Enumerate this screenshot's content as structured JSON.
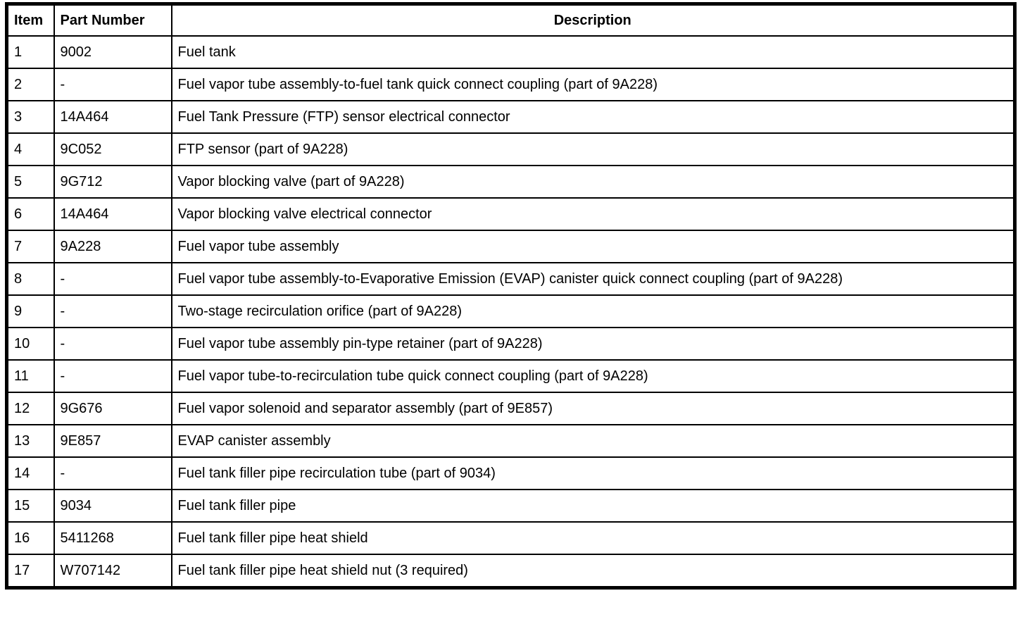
{
  "colors": {
    "border": "#000000",
    "background": "#ffffff",
    "text": "#000000"
  },
  "table": {
    "headers": [
      "Item",
      "Part Number",
      "Description"
    ],
    "rows": [
      {
        "item": "1",
        "part_number": "9002",
        "description": "Fuel tank"
      },
      {
        "item": "2",
        "part_number": "-",
        "description": "Fuel vapor tube assembly-to-fuel tank quick connect coupling (part of 9A228)"
      },
      {
        "item": "3",
        "part_number": "14A464",
        "description": "Fuel Tank Pressure (FTP) sensor electrical connector"
      },
      {
        "item": "4",
        "part_number": "9C052",
        "description": "FTP sensor (part of 9A228)"
      },
      {
        "item": "5",
        "part_number": "9G712",
        "description": "Vapor blocking valve (part of 9A228)"
      },
      {
        "item": "6",
        "part_number": "14A464",
        "description": "Vapor blocking valve electrical connector"
      },
      {
        "item": "7",
        "part_number": "9A228",
        "description": "Fuel vapor tube assembly"
      },
      {
        "item": "8",
        "part_number": "-",
        "description": "Fuel vapor tube assembly-to-Evaporative Emission (EVAP) canister quick connect coupling (part of 9A228)"
      },
      {
        "item": "9",
        "part_number": "-",
        "description": "Two-stage recirculation orifice (part of 9A228)"
      },
      {
        "item": "10",
        "part_number": "-",
        "description": "Fuel vapor tube assembly pin-type retainer (part of 9A228)"
      },
      {
        "item": "11",
        "part_number": "-",
        "description": "Fuel vapor tube-to-recirculation tube quick connect coupling (part of 9A228)"
      },
      {
        "item": "12",
        "part_number": "9G676",
        "description": "Fuel vapor solenoid and separator assembly (part of 9E857)"
      },
      {
        "item": "13",
        "part_number": "9E857",
        "description": "EVAP canister assembly"
      },
      {
        "item": "14",
        "part_number": "-",
        "description": "Fuel tank filler pipe recirculation tube (part of 9034)"
      },
      {
        "item": "15",
        "part_number": "9034",
        "description": "Fuel tank filler pipe"
      },
      {
        "item": "16",
        "part_number": "5411268",
        "description": "Fuel tank filler pipe heat shield"
      },
      {
        "item": "17",
        "part_number": "W707142",
        "description": "Fuel tank filler pipe heat shield nut (3 required)"
      }
    ]
  }
}
